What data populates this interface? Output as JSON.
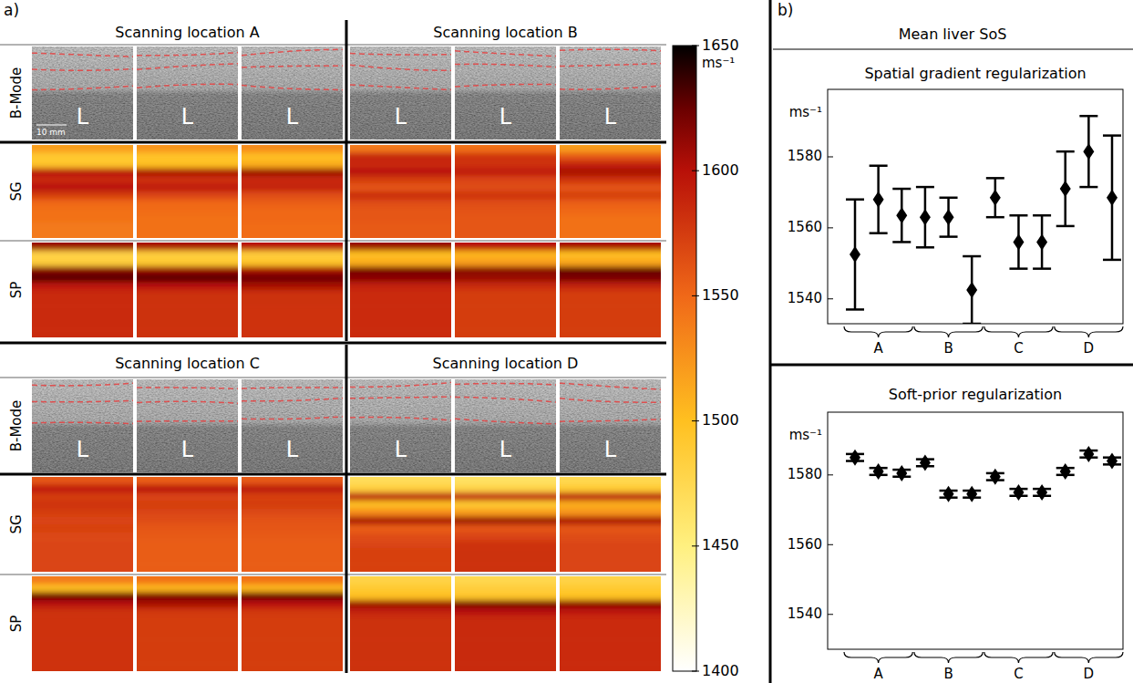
{
  "figure": {
    "panel_labels": [
      "a)",
      "b)"
    ],
    "summary_title": "Mean liver SoS"
  },
  "chart_data": [
    {
      "type": "image_grid",
      "row_labels": [
        "B-Mode",
        "SG",
        "SP"
      ],
      "bmode_label": "L",
      "scale_bar": "10 mm",
      "locations": [
        {
          "title": "Scanning location A",
          "maps": [
            [
              [
                1520,
                1490,
                1495,
                1600,
                1585,
                1600,
                1575,
                1550,
                1545,
                1545,
                1540,
                1540
              ],
              [
                1525,
                1495,
                1500,
                1605,
                1580,
                1595,
                1570,
                1550,
                1548,
                1545,
                1545,
                1545
              ],
              [
                1530,
                1500,
                1510,
                1610,
                1585,
                1590,
                1565,
                1555,
                1550,
                1550,
                1548,
                1548
              ]
            ],
            [
              [
                1610,
                1480,
                1485,
                1615,
                1630,
                1595,
                1585,
                1585,
                1585,
                1585,
                1585,
                1585
              ],
              [
                1605,
                1485,
                1490,
                1610,
                1630,
                1600,
                1582,
                1582,
                1582,
                1582,
                1582,
                1582
              ],
              [
                1600,
                1485,
                1495,
                1605,
                1625,
                1605,
                1582,
                1582,
                1580,
                1580,
                1580,
                1580
              ]
            ]
          ]
        },
        {
          "title": "Scanning location B",
          "maps": [
            [
              [
                1540,
                1590,
                1585,
                1600,
                1575,
                1560,
                1585,
                1565,
                1560,
                1560,
                1558,
                1558
              ],
              [
                1545,
                1580,
                1580,
                1595,
                1570,
                1565,
                1580,
                1565,
                1562,
                1560,
                1560,
                1560
              ],
              [
                1520,
                1560,
                1590,
                1605,
                1580,
                1560,
                1575,
                1555,
                1550,
                1545,
                1545,
                1545
              ]
            ],
            [
              [
                1610,
                1500,
                1510,
                1620,
                1615,
                1590,
                1584,
                1584,
                1584,
                1584,
                1584,
                1584
              ],
              [
                1600,
                1505,
                1520,
                1615,
                1610,
                1585,
                1575,
                1575,
                1575,
                1575,
                1575,
                1575
              ],
              [
                1605,
                1500,
                1515,
                1625,
                1620,
                1590,
                1575,
                1575,
                1575,
                1575,
                1575,
                1575
              ]
            ]
          ]
        },
        {
          "title": "Scanning location C",
          "maps": [
            [
              [
                1560,
                1595,
                1575,
                1580,
                1575,
                1570,
                1572,
                1568,
                1570,
                1570,
                1570,
                1570
              ],
              [
                1555,
                1600,
                1570,
                1575,
                1570,
                1565,
                1560,
                1558,
                1556,
                1556,
                1556,
                1556
              ],
              [
                1558,
                1598,
                1572,
                1575,
                1568,
                1562,
                1560,
                1558,
                1556,
                1556,
                1556,
                1556
              ]
            ],
            [
              [
                1540,
                1500,
                1625,
                1600,
                1582,
                1580,
                1580,
                1580,
                1580,
                1580,
                1580,
                1580
              ],
              [
                1545,
                1505,
                1620,
                1605,
                1578,
                1575,
                1575,
                1575,
                1575,
                1575,
                1575,
                1575
              ],
              [
                1545,
                1505,
                1625,
                1600,
                1578,
                1575,
                1575,
                1575,
                1575,
                1575,
                1575,
                1575
              ]
            ]
          ]
        },
        {
          "title": "Scanning location D",
          "maps": [
            [
              [
                1470,
                1485,
                1600,
                1500,
                1530,
                1605,
                1555,
                1565,
                1570,
                1572,
                1572,
                1572
              ],
              [
                1465,
                1480,
                1595,
                1490,
                1520,
                1610,
                1560,
                1570,
                1580,
                1582,
                1582,
                1582
              ],
              [
                1475,
                1490,
                1600,
                1510,
                1525,
                1605,
                1560,
                1565,
                1570,
                1570,
                1570,
                1570
              ]
            ],
            [
              [
                1480,
                1490,
                1500,
                1610,
                1590,
                1582,
                1582,
                1582,
                1582,
                1582,
                1582,
                1582
              ],
              [
                1475,
                1485,
                1495,
                1620,
                1600,
                1586,
                1586,
                1586,
                1586,
                1586,
                1586,
                1586
              ],
              [
                1480,
                1490,
                1498,
                1615,
                1595,
                1584,
                1584,
                1584,
                1584,
                1584,
                1584,
                1584
              ]
            ]
          ]
        }
      ],
      "colorbar": {
        "range": [
          1400,
          1650
        ],
        "ticks": [
          1400,
          1450,
          1500,
          1550,
          1600,
          1650
        ],
        "unit": "ms⁻¹"
      }
    },
    {
      "type": "scatter",
      "title": "Spatial gradient regularization",
      "y_label": "ms⁻¹",
      "categories": [
        null,
        "A",
        null,
        null,
        "B",
        null,
        null,
        "C",
        null,
        null,
        "D",
        null
      ],
      "values": [
        1552.5,
        1568,
        1563.5,
        1563,
        1563,
        1542.5,
        1568.5,
        1556,
        1556,
        1571,
        1581.5,
        1568.5
      ],
      "errors": [
        15.5,
        9.5,
        7.5,
        8.5,
        5.5,
        9.5,
        5.5,
        7.5,
        7.5,
        10.5,
        10,
        17.5
      ],
      "ylim": [
        1533,
        1599
      ],
      "yticks": [
        1540,
        1560,
        1580
      ],
      "marker": "diamond",
      "color": "#000000"
    },
    {
      "type": "scatter",
      "title": "Soft-prior regularization",
      "y_label": "ms⁻¹",
      "categories": [
        null,
        "A",
        null,
        null,
        "B",
        null,
        null,
        "C",
        null,
        null,
        "D",
        null
      ],
      "values": [
        1585,
        1581,
        1580.5,
        1583.5,
        1574.5,
        1574.5,
        1579.5,
        1575,
        1575,
        1581,
        1586,
        1584
      ],
      "errors": [
        1,
        1,
        1,
        1,
        1,
        1,
        1,
        1,
        1,
        1,
        1,
        1
      ],
      "ylim": [
        1530,
        1598
      ],
      "yticks": [
        1540,
        1560,
        1580
      ],
      "marker": "diamond",
      "color": "#000000"
    }
  ]
}
